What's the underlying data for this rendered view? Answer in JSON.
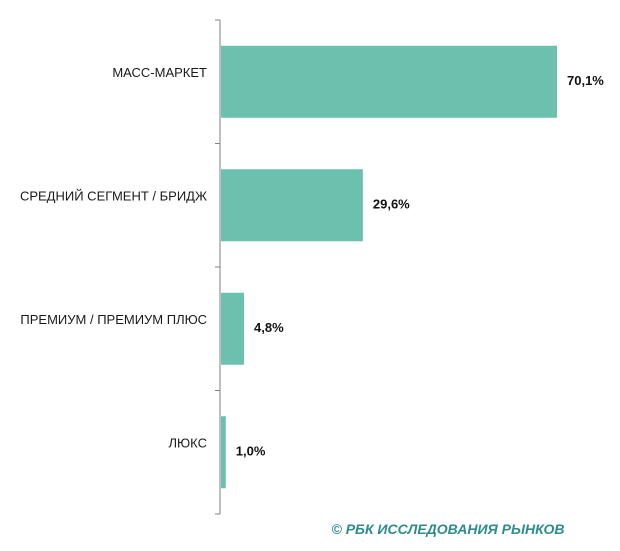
{
  "chart_data": {
    "type": "bar",
    "orientation": "horizontal",
    "categories": [
      "МАСС-МАРКЕТ",
      "СРЕДНИЙ СЕГМЕНТ / БРИДЖ",
      "ПРЕМИУМ / ПРЕМИУМ ПЛЮС",
      "ЛЮКС"
    ],
    "values": [
      70.1,
      29.6,
      4.8,
      1.0
    ],
    "value_labels": [
      "70,1%",
      "29,6%",
      "4,8%",
      "1,0%"
    ],
    "xlim": [
      0,
      80
    ],
    "grid": false,
    "legend": "none",
    "bar_color": "#6cc1ae",
    "axis_color": "#7f7f7f"
  },
  "source": {
    "text": "© РБК ИССЛЕДОВАНИЯ РЫНКОВ",
    "color": "#2e8c8c"
  }
}
